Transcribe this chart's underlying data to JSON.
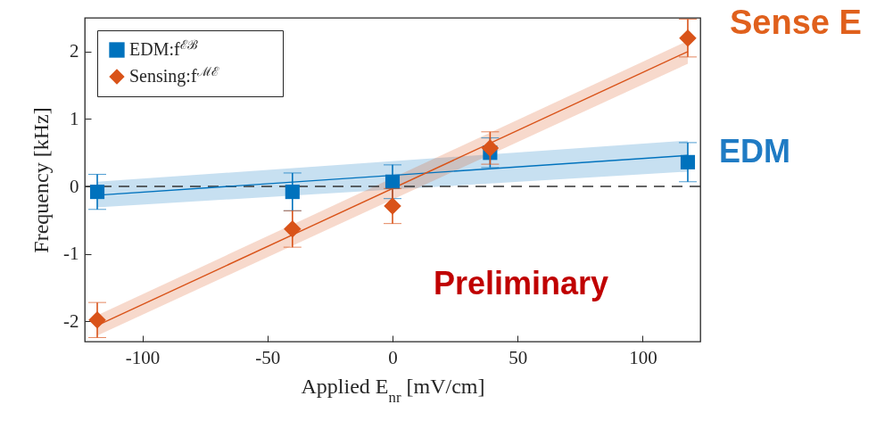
{
  "chart_data": {
    "type": "scatter",
    "xlabel": "Applied E$_{nr}$ [mV/cm]",
    "ylabel": "Frequency [kHz]",
    "xlim": [
      -123,
      123
    ],
    "xticks": [
      -100,
      -50,
      0,
      50,
      100
    ],
    "ylim": [
      -2.3,
      2.5
    ],
    "yticks": [
      -2,
      -1,
      0,
      1,
      2
    ],
    "grid": false,
    "legend": "top left",
    "series": [
      {
        "name": "EDM:f$^{ℰℬ}$",
        "marker": "square",
        "color": "#0072bd",
        "x": [
          -118,
          -40,
          0,
          39,
          118
        ],
        "values": [
          -0.08,
          -0.08,
          0.07,
          0.5,
          0.36
        ],
        "errors": [
          0.26,
          0.28,
          0.25,
          0.22,
          0.29
        ]
      },
      {
        "name": "Sensing:f$^{ℳℰ}$",
        "marker": "diamond",
        "color": "#d95319",
        "x": [
          -118,
          -40,
          0,
          39,
          118
        ],
        "values": [
          -1.98,
          -0.63,
          -0.29,
          0.57,
          2.2
        ],
        "errors": [
          0.26,
          0.27,
          0.26,
          0.24,
          0.28
        ]
      },
      {
        "type": "line",
        "color": "#0072bd",
        "x": [
          -118,
          118
        ],
        "values": [
          -0.13,
          0.46
        ],
        "lower": [
          -0.31,
          0.22
        ],
        "upper": [
          0.07,
          0.68
        ]
      },
      {
        "type": "line",
        "color": "#d95319",
        "x": [
          -118,
          118
        ],
        "values": [
          -2.06,
          2.0
        ],
        "lower": [
          -2.21,
          1.82
        ],
        "upper": [
          -1.91,
          2.16
        ]
      }
    ],
    "ref_lines": [
      {
        "axis": "y",
        "value": 0,
        "color": "#333333",
        "line_style": "dashed"
      }
    ],
    "annotations": [
      "Sense E",
      "EDM",
      "Preliminary"
    ]
  }
}
